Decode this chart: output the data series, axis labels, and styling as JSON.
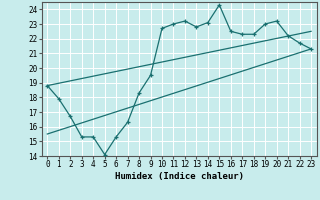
{
  "xlabel": "Humidex (Indice chaleur)",
  "bg_color": "#c8ecec",
  "grid_color": "#ffffff",
  "line_color": "#1a7070",
  "xlim": [
    -0.5,
    23.5
  ],
  "ylim": [
    14,
    24.5
  ],
  "xticks": [
    0,
    1,
    2,
    3,
    4,
    5,
    6,
    7,
    8,
    9,
    10,
    11,
    12,
    13,
    14,
    15,
    16,
    17,
    18,
    19,
    20,
    21,
    22,
    23
  ],
  "yticks": [
    14,
    15,
    16,
    17,
    18,
    19,
    20,
    21,
    22,
    23,
    24
  ],
  "zigzag_x": [
    0,
    1,
    2,
    3,
    4,
    5,
    6,
    7,
    8,
    9,
    10,
    11,
    12,
    13,
    14,
    15,
    16,
    17,
    18,
    19,
    20,
    21,
    22,
    23
  ],
  "zigzag_y": [
    18.8,
    17.9,
    16.7,
    15.3,
    15.3,
    14.1,
    15.3,
    16.3,
    18.3,
    19.5,
    22.7,
    23.0,
    23.2,
    22.8,
    23.1,
    24.3,
    22.5,
    22.3,
    22.3,
    23.0,
    23.2,
    22.2,
    21.7,
    21.3
  ],
  "line1_x": [
    0,
    23
  ],
  "line1_y": [
    15.5,
    21.3
  ],
  "line2_x": [
    0,
    23
  ],
  "line2_y": [
    18.8,
    22.5
  ],
  "tick_fontsize": 5.5,
  "xlabel_fontsize": 6.5
}
